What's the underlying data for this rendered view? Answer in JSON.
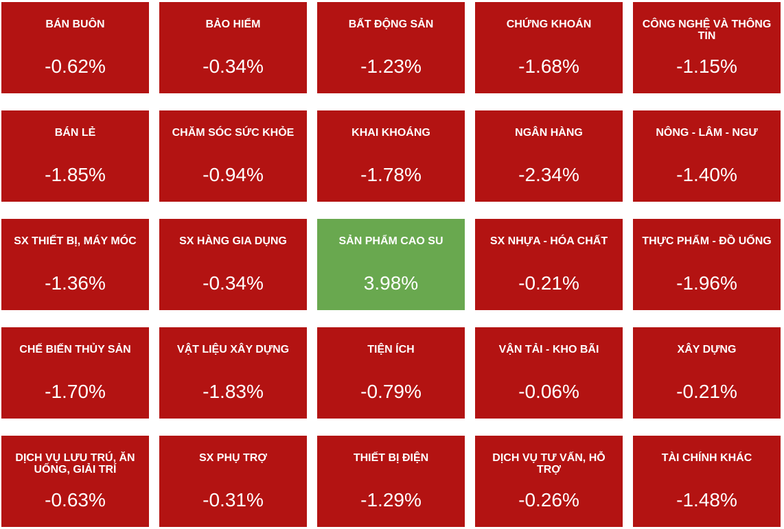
{
  "tiles": [
    {
      "name": "BÁN BUÔN",
      "value": "-0.62%",
      "color": "#b31312"
    },
    {
      "name": "BẢO HIỂM",
      "value": "-0.34%",
      "color": "#b31312"
    },
    {
      "name": "BẤT ĐỘNG SẢN",
      "value": "-1.23%",
      "color": "#b31312"
    },
    {
      "name": "CHỨNG KHOÁN",
      "value": "-1.68%",
      "color": "#b31312"
    },
    {
      "name": "CÔNG NGHỆ VÀ THÔNG TIN",
      "value": "-1.15%",
      "color": "#b31312"
    },
    {
      "name": "BÁN LẺ",
      "value": "-1.85%",
      "color": "#b31312"
    },
    {
      "name": "CHĂM SÓC SỨC KHỎE",
      "value": "-0.94%",
      "color": "#b31312"
    },
    {
      "name": "KHAI KHOÁNG",
      "value": "-1.78%",
      "color": "#b31312"
    },
    {
      "name": "NGÂN HÀNG",
      "value": "-2.34%",
      "color": "#b31312"
    },
    {
      "name": "NÔNG - LÂM - NGƯ",
      "value": "-1.40%",
      "color": "#b31312"
    },
    {
      "name": "SX THIẾT BỊ, MÁY MÓC",
      "value": "-1.36%",
      "color": "#b31312"
    },
    {
      "name": "SX HÀNG GIA DỤNG",
      "value": "-0.34%",
      "color": "#b31312"
    },
    {
      "name": "SẢN PHẨM CAO SU",
      "value": "3.98%",
      "color": "#69a84f"
    },
    {
      "name": "SX NHỰA - HÓA CHẤT",
      "value": "-0.21%",
      "color": "#b31312"
    },
    {
      "name": "THỰC PHẨM - ĐỒ UỐNG",
      "value": "-1.96%",
      "color": "#b31312"
    },
    {
      "name": "CHẾ BIẾN THỦY SẢN",
      "value": "-1.70%",
      "color": "#b31312"
    },
    {
      "name": "VẬT LIỆU XÂY DỰNG",
      "value": "-1.83%",
      "color": "#b31312"
    },
    {
      "name": "TIỆN ÍCH",
      "value": "-0.79%",
      "color": "#b31312"
    },
    {
      "name": "VẬN TẢI - KHO BÃI",
      "value": "-0.06%",
      "color": "#b31312"
    },
    {
      "name": "XÂY DỰNG",
      "value": "-0.21%",
      "color": "#b31312"
    },
    {
      "name": "DỊCH VỤ LƯU TRÚ, ĂN UỐNG, GIẢI TRÍ",
      "value": "-0.63%",
      "color": "#b31312"
    },
    {
      "name": "SX PHỤ TRỢ",
      "value": "-0.31%",
      "color": "#b31312"
    },
    {
      "name": "THIẾT BỊ ĐIỆN",
      "value": "-1.29%",
      "color": "#b31312"
    },
    {
      "name": "DỊCH VỤ TƯ VẤN, HỖ TRỢ",
      "value": "-0.26%",
      "color": "#b31312"
    },
    {
      "name": "TÀI CHÍNH KHÁC",
      "value": "-1.48%",
      "color": "#b31312"
    }
  ]
}
